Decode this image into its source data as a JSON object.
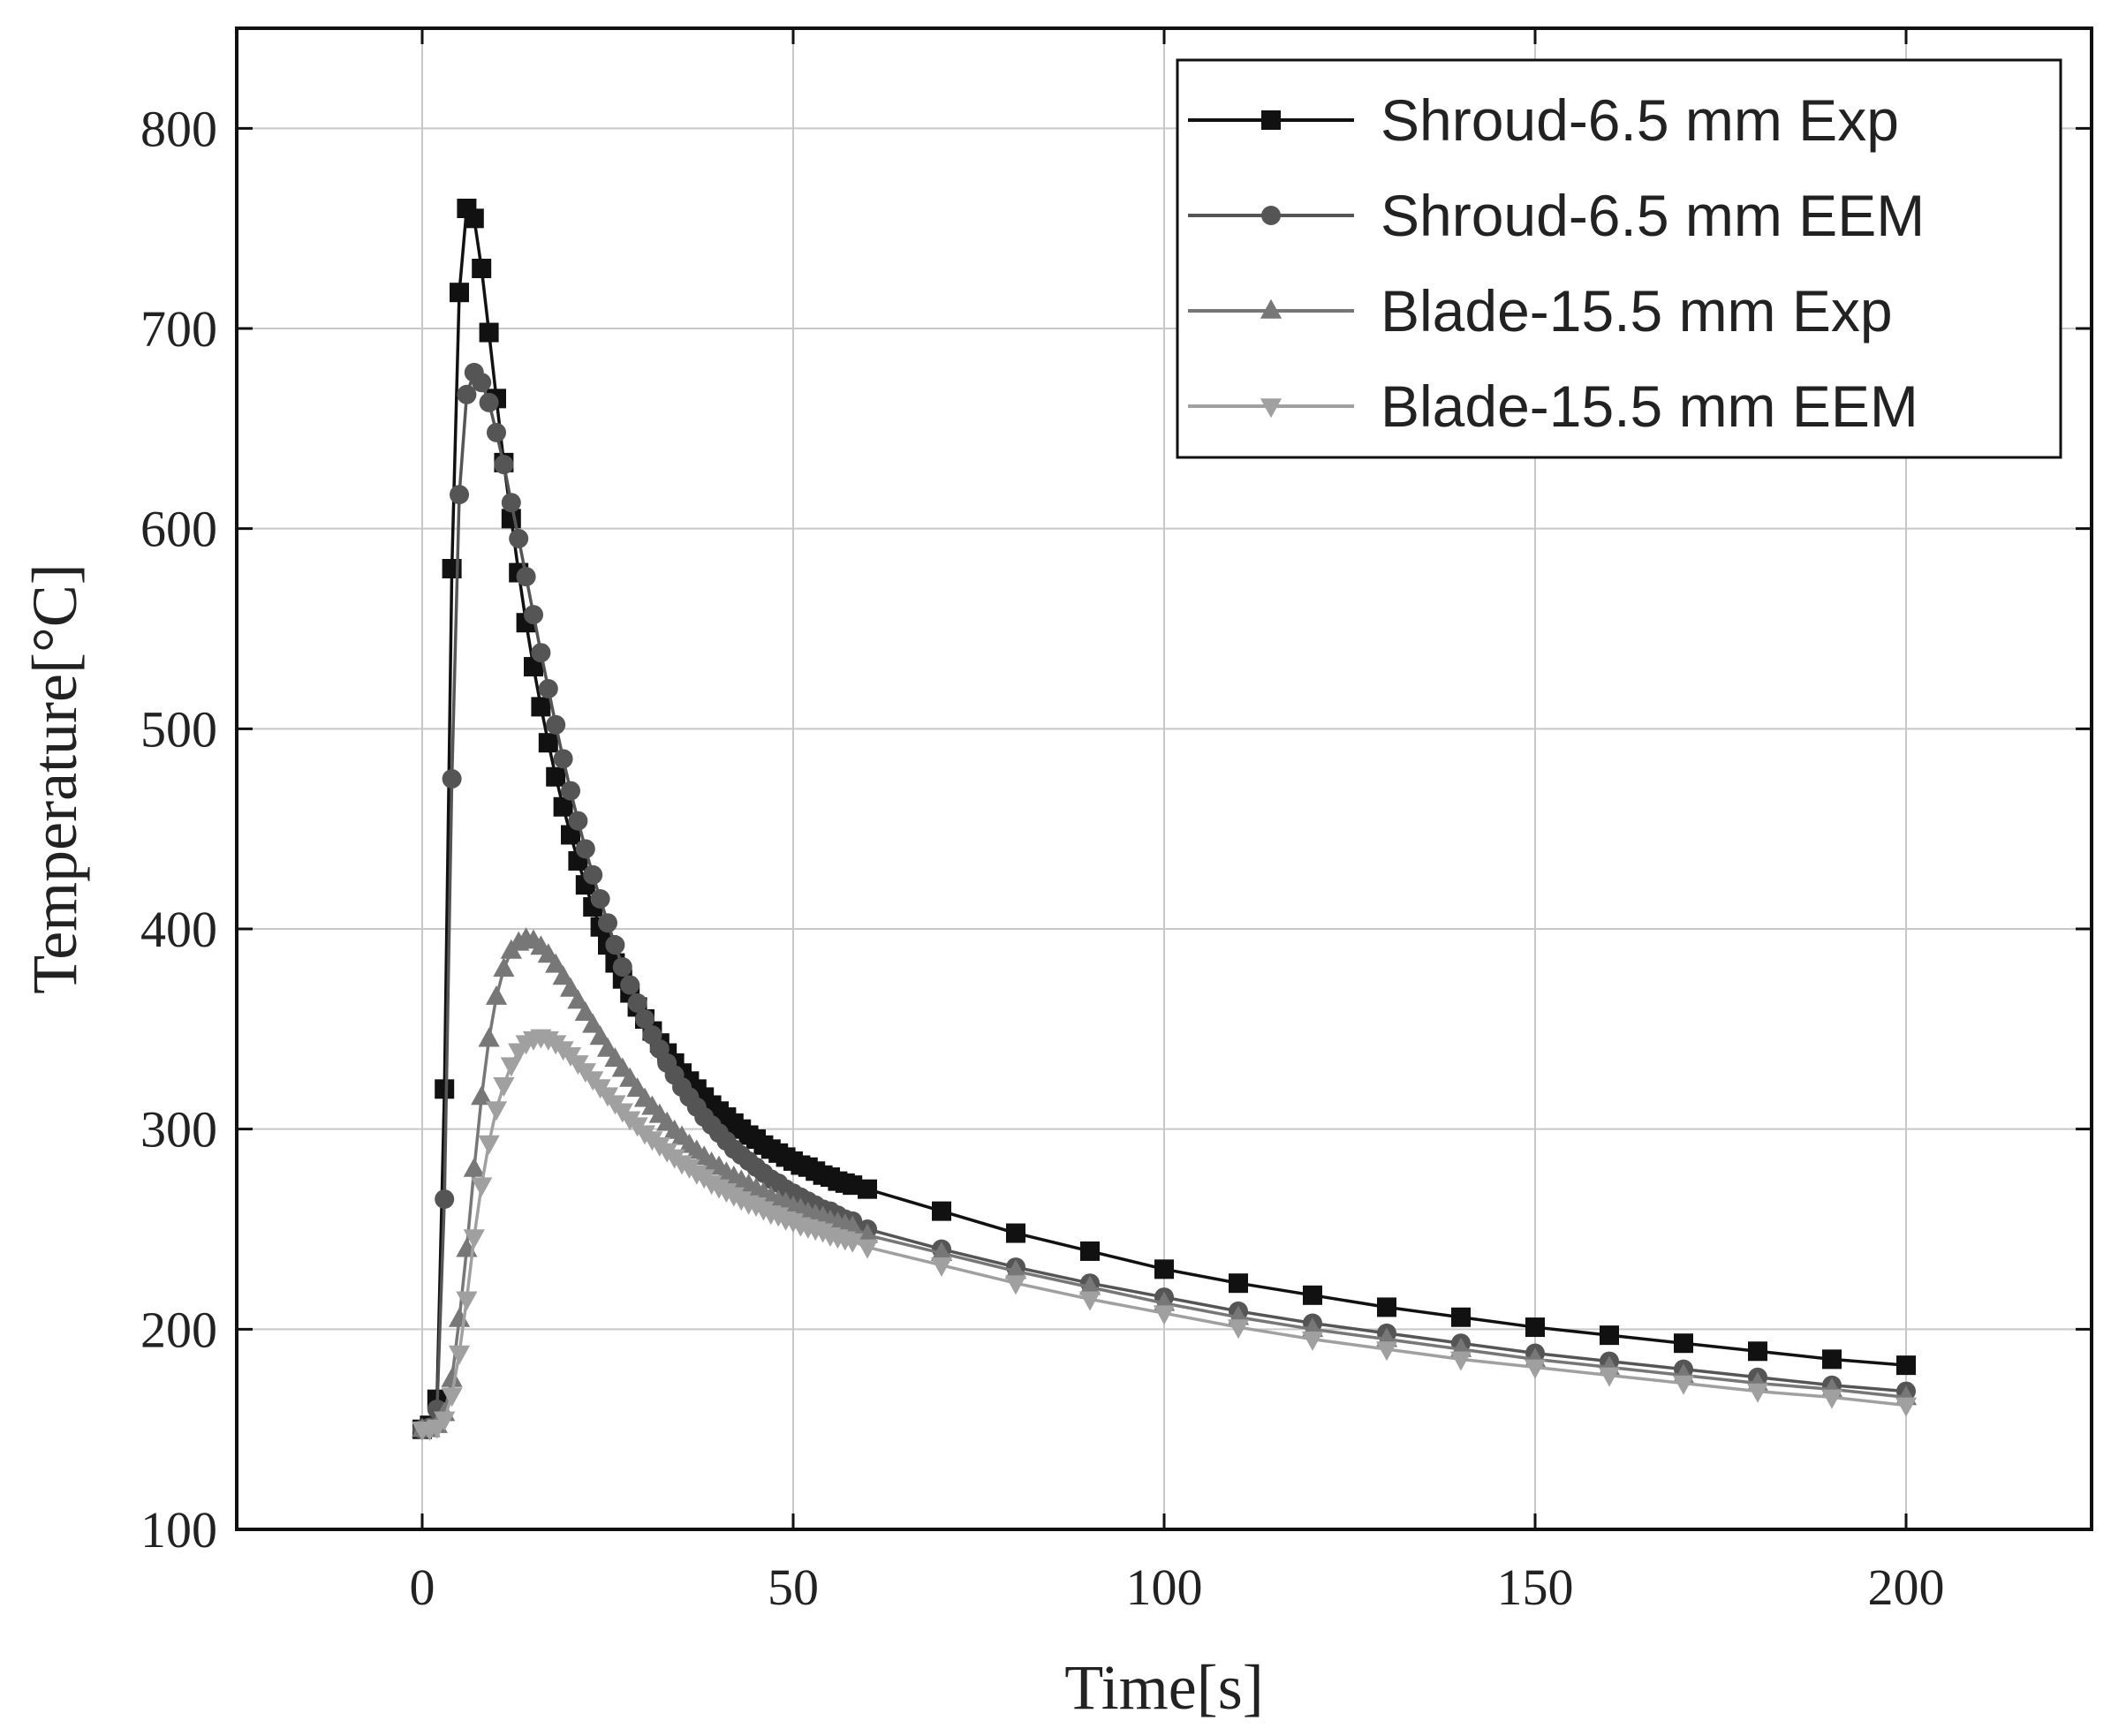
{
  "chart_data": {
    "type": "line",
    "title": "",
    "xlabel": "Time[s]",
    "ylabel": "Temperature[°C]",
    "xlim": [
      -25,
      225
    ],
    "ylim": [
      100,
      850
    ],
    "xticks": [
      0,
      50,
      100,
      150,
      200
    ],
    "yticks": [
      100,
      200,
      300,
      400,
      500,
      600,
      700,
      800
    ],
    "grid": true,
    "legend_position": "top-right",
    "series": [
      {
        "name": "Shroud-6.5 mm Exp",
        "marker": "square",
        "color": "#111111",
        "x": [
          0,
          1,
          2,
          3,
          4,
          5,
          6,
          7,
          8,
          9,
          10,
          11,
          12,
          13,
          14,
          15,
          16,
          17,
          18,
          19,
          20,
          21,
          22,
          23,
          24,
          25,
          26,
          27,
          28,
          29,
          30,
          31,
          32,
          33,
          34,
          35,
          36,
          37,
          38,
          39,
          40,
          41,
          42,
          43,
          44,
          45,
          46,
          47,
          48,
          49,
          50,
          51,
          52,
          53,
          54,
          55,
          56,
          57,
          58,
          60,
          70,
          80,
          90,
          100,
          110,
          120,
          130,
          140,
          150,
          160,
          170,
          180,
          190,
          200
        ],
        "y": [
          150,
          152,
          165,
          320,
          580,
          718,
          760,
          755,
          730,
          698,
          665,
          633,
          605,
          578,
          553,
          531,
          511,
          493,
          476,
          461,
          447,
          434,
          422,
          411,
          401,
          392,
          383,
          375,
          368,
          361,
          355,
          349,
          343,
          338,
          333,
          328,
          324,
          320,
          316,
          312,
          309,
          306,
          303,
          300,
          297,
          295,
          292,
          290,
          288,
          286,
          284,
          282,
          281,
          279,
          277,
          276,
          274,
          273,
          272,
          270,
          259,
          248,
          239,
          230,
          223,
          217,
          211,
          206,
          201,
          197,
          193,
          189,
          185,
          182
        ]
      },
      {
        "name": "Shroud-6.5 mm EEM",
        "marker": "circle",
        "color": "#555555",
        "x": [
          0,
          1,
          2,
          3,
          4,
          5,
          6,
          7,
          8,
          9,
          10,
          11,
          12,
          13,
          14,
          15,
          16,
          17,
          18,
          19,
          20,
          21,
          22,
          23,
          24,
          25,
          26,
          27,
          28,
          29,
          30,
          31,
          32,
          33,
          34,
          35,
          36,
          37,
          38,
          39,
          40,
          41,
          42,
          43,
          44,
          45,
          46,
          47,
          48,
          49,
          50,
          51,
          52,
          53,
          54,
          55,
          56,
          57,
          58,
          60,
          70,
          80,
          90,
          100,
          110,
          120,
          130,
          140,
          150,
          160,
          170,
          180,
          190,
          200
        ],
        "y": [
          150,
          151,
          160,
          265,
          475,
          617,
          667,
          678,
          673,
          663,
          648,
          632,
          613,
          595,
          576,
          557,
          538,
          520,
          502,
          485,
          469,
          454,
          440,
          427,
          415,
          403,
          392,
          381,
          372,
          363,
          355,
          347,
          340,
          333,
          327,
          321,
          316,
          311,
          306,
          302,
          298,
          294,
          290,
          287,
          284,
          281,
          278,
          275,
          273,
          270,
          268,
          266,
          264,
          262,
          260,
          259,
          257,
          255,
          254,
          250,
          240,
          231,
          223,
          216,
          209,
          203,
          198,
          193,
          188,
          184,
          180,
          176,
          172,
          169
        ]
      },
      {
        "name": "Blade-15.5 mm Exp",
        "marker": "triangle-up",
        "color": "#777777",
        "x": [
          0,
          1,
          2,
          3,
          4,
          5,
          6,
          7,
          8,
          9,
          10,
          11,
          12,
          13,
          14,
          15,
          16,
          17,
          18,
          19,
          20,
          21,
          22,
          23,
          24,
          25,
          26,
          27,
          28,
          29,
          30,
          31,
          32,
          33,
          34,
          35,
          36,
          37,
          38,
          39,
          40,
          41,
          42,
          43,
          44,
          45,
          46,
          47,
          48,
          49,
          50,
          51,
          52,
          53,
          54,
          55,
          56,
          57,
          58,
          60,
          70,
          80,
          90,
          100,
          110,
          120,
          130,
          140,
          150,
          160,
          170,
          180,
          190,
          200
        ],
        "y": [
          150,
          150,
          152,
          158,
          175,
          205,
          240,
          280,
          316,
          345,
          366,
          380,
          389,
          393,
          395,
          394,
          391,
          387,
          382,
          376,
          370,
          364,
          358,
          352,
          346,
          340,
          335,
          330,
          325,
          320,
          315,
          311,
          307,
          303,
          299,
          296,
          292,
          289,
          286,
          283,
          281,
          278,
          276,
          274,
          272,
          270,
          268,
          266,
          264,
          263,
          261,
          260,
          258,
          257,
          256,
          254,
          253,
          252,
          251,
          247,
          238,
          229,
          221,
          213,
          206,
          200,
          195,
          190,
          185,
          181,
          177,
          173,
          170,
          166
        ]
      },
      {
        "name": "Blade-15.5 mm EEM",
        "marker": "triangle-down",
        "color": "#a0a0a0",
        "x": [
          0,
          1,
          2,
          3,
          4,
          5,
          6,
          7,
          8,
          9,
          10,
          11,
          12,
          13,
          14,
          15,
          16,
          17,
          18,
          19,
          20,
          21,
          22,
          23,
          24,
          25,
          26,
          27,
          28,
          29,
          30,
          31,
          32,
          33,
          34,
          35,
          36,
          37,
          38,
          39,
          40,
          41,
          42,
          43,
          44,
          45,
          46,
          47,
          48,
          49,
          50,
          51,
          52,
          53,
          54,
          55,
          56,
          57,
          58,
          60,
          70,
          80,
          90,
          100,
          110,
          120,
          130,
          140,
          150,
          160,
          170,
          180,
          190,
          200
        ],
        "y": [
          150,
          150,
          151,
          155,
          167,
          188,
          215,
          246,
          272,
          293,
          310,
          322,
          332,
          339,
          343,
          345,
          346,
          345,
          343,
          340,
          337,
          333,
          329,
          325,
          321,
          317,
          313,
          309,
          305,
          302,
          298,
          295,
          292,
          289,
          286,
          283,
          281,
          278,
          276,
          273,
          271,
          269,
          267,
          265,
          263,
          262,
          260,
          258,
          257,
          255,
          254,
          252,
          251,
          250,
          249,
          247,
          246,
          245,
          244,
          241,
          232,
          223,
          215,
          208,
          201,
          195,
          190,
          185,
          181,
          177,
          173,
          169,
          166,
          162
        ]
      }
    ]
  }
}
